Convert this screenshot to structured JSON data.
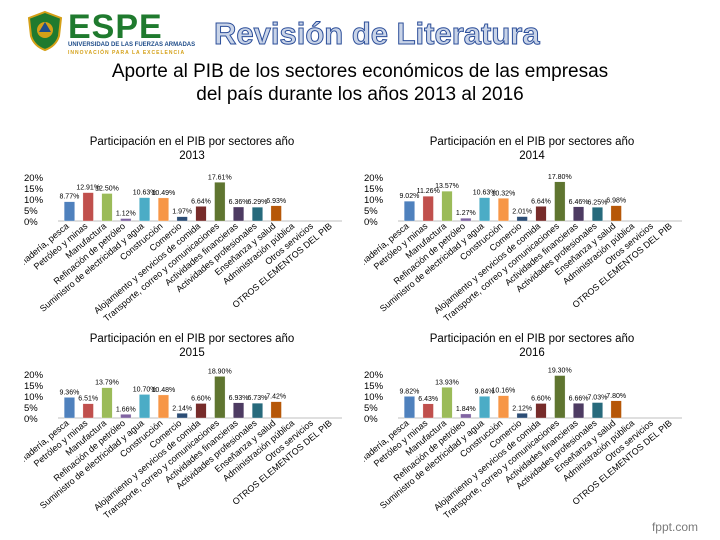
{
  "header": {
    "brand": "ESPE",
    "brand_sub1": "UNIVERSIDAD DE LAS FUERZAS ARMADAS",
    "brand_sub2": "INNOVACIÓN PARA LA EXCELENCIA",
    "section_title": "Revisión de Literatura",
    "logo_icon": "university-crest-icon"
  },
  "main_title_line1": "Aporte al PIB de los sectores económicos de las empresas",
  "main_title_line2": "del país durante los años 2013 al 2016",
  "footer": "fppt.com",
  "chart_data": [
    {
      "type": "bar",
      "title": "Participación en el PIB por sectores año 2013",
      "yticks": [
        "20%",
        "15%",
        "10%",
        "5%",
        "0%"
      ],
      "ylim": [
        0,
        20
      ],
      "categories": [
        "Agricultura, ganadería, pesca",
        "Petróleo y minas",
        "Manufactura",
        "Refinación de petróleo",
        "Suministro de electricidad y agua",
        "Construcción",
        "Comercio",
        "Alojamiento y servicios de comida",
        "Transporte, correo y comunicaciones",
        "Actividades financieras",
        "Actividades profesionales",
        "Enseñanza y salud",
        "Administración pública",
        "Otros servicios",
        "OTROS ELEMENTOS DEL PIB"
      ],
      "values": [
        8.77,
        12.91,
        12.5,
        1.12,
        10.63,
        10.49,
        1.97,
        6.64,
        17.61,
        6.36,
        6.29,
        6.93,
        0.0,
        0.0,
        0.0
      ],
      "value_labels": [
        "8.77%",
        "12.91%",
        "12.50%",
        "1.12%",
        "10.63%",
        "10.49%",
        "1.97%",
        "6.64%",
        "17.61%",
        "6.36%",
        "6.29%",
        "6.93%",
        "",
        "",
        ""
      ],
      "colors": [
        "#4f81bd",
        "#c0504d",
        "#9bbb59",
        "#8064a2",
        "#4bacc6",
        "#f79646",
        "#2c4d75",
        "#772c2a",
        "#5f7530",
        "#4d3b62",
        "#276a7c",
        "#b65708",
        "#729aca",
        "#cd7371",
        "#afc97a"
      ]
    },
    {
      "type": "bar",
      "title": "Participación en el PIB por sectores año 2014",
      "yticks": [
        "20%",
        "15%",
        "10%",
        "5%",
        "0%"
      ],
      "ylim": [
        0,
        20
      ],
      "categories": [
        "Agricultura, ganadería, pesca",
        "Petróleo y minas",
        "Manufactura",
        "Refinación de petróleo",
        "Suministro de electricidad y agua",
        "Construcción",
        "Comercio",
        "Alojamiento y servicios de comida",
        "Transporte, correo y comunicaciones",
        "Actividades financieras",
        "Actividades profesionales",
        "Enseñanza y salud",
        "Administración pública",
        "Otros servicios",
        "OTROS ELEMENTOS DEL PIB"
      ],
      "values": [
        9.02,
        11.26,
        13.57,
        1.27,
        10.63,
        10.32,
        2.01,
        6.64,
        17.8,
        6.46,
        6.25,
        6.98,
        0.0,
        0.0,
        0.0
      ],
      "value_labels": [
        "9.02%",
        "11.26%",
        "13.57%",
        "1.27%",
        "10.63%",
        "10.32%",
        "2.01%",
        "6.64%",
        "17.80%",
        "6.46%",
        "6.25%",
        "6.98%",
        "",
        "",
        ""
      ],
      "colors": [
        "#4f81bd",
        "#c0504d",
        "#9bbb59",
        "#8064a2",
        "#4bacc6",
        "#f79646",
        "#2c4d75",
        "#772c2a",
        "#5f7530",
        "#4d3b62",
        "#276a7c",
        "#b65708",
        "#729aca",
        "#cd7371",
        "#afc97a"
      ]
    },
    {
      "type": "bar",
      "title": "Participación en el PIB por sectores año 2015",
      "yticks": [
        "20%",
        "15%",
        "10%",
        "5%",
        "0%"
      ],
      "ylim": [
        0,
        20
      ],
      "categories": [
        "Agricultura, ganadería, pesca",
        "Petróleo y minas",
        "Manufactura",
        "Refinación de petróleo",
        "Suministro de electricidad y agua",
        "Construcción",
        "Comercio",
        "Alojamiento y servicios de comida",
        "Transporte, correo y comunicaciones",
        "Actividades financieras",
        "Actividades profesionales",
        "Enseñanza y salud",
        "Administración pública",
        "Otros servicios",
        "OTROS ELEMENTOS DEL PIB"
      ],
      "values": [
        9.36,
        6.51,
        13.79,
        1.66,
        10.7,
        10.48,
        2.14,
        6.6,
        18.9,
        6.93,
        6.73,
        7.42,
        0.0,
        0.0,
        0.0
      ],
      "value_labels": [
        "9.36%",
        "6.51%",
        "13.79%",
        "1.66%",
        "10.70%",
        "10.48%",
        "2.14%",
        "6.60%",
        "18.90%",
        "6.93%",
        "6.73%",
        "7.42%",
        "",
        "",
        ""
      ],
      "colors": [
        "#4f81bd",
        "#c0504d",
        "#9bbb59",
        "#8064a2",
        "#4bacc6",
        "#f79646",
        "#2c4d75",
        "#772c2a",
        "#5f7530",
        "#4d3b62",
        "#276a7c",
        "#b65708",
        "#729aca",
        "#cd7371",
        "#afc97a"
      ]
    },
    {
      "type": "bar",
      "title": "Participación en el PIB por sectores año 2016",
      "yticks": [
        "20%",
        "15%",
        "10%",
        "5%",
        "0%"
      ],
      "ylim": [
        0,
        20
      ],
      "categories": [
        "Agricultura, ganadería, pesca",
        "Petróleo y minas",
        "Manufactura",
        "Refinación de petróleo",
        "Suministro de electricidad y agua",
        "Construcción",
        "Comercio",
        "Alojamiento y servicios de comida",
        "Transporte, correo y comunicaciones",
        "Actividades financieras",
        "Actividades profesionales",
        "Enseñanza y salud",
        "Administración pública",
        "Otros servicios",
        "OTROS ELEMENTOS DEL PIB"
      ],
      "values": [
        9.82,
        6.43,
        13.93,
        1.84,
        9.84,
        10.16,
        2.12,
        6.6,
        19.3,
        6.66,
        7.03,
        7.8,
        0.0,
        0.0,
        0.0
      ],
      "value_labels": [
        "9.82%",
        "6.43%",
        "13.93%",
        "1.84%",
        "9.84%",
        "10.16%",
        "2.12%",
        "6.60%",
        "19.30%",
        "6.66%",
        "7.03%",
        "7.80%",
        "",
        "",
        ""
      ],
      "colors": [
        "#4f81bd",
        "#c0504d",
        "#9bbb59",
        "#8064a2",
        "#4bacc6",
        "#f79646",
        "#2c4d75",
        "#772c2a",
        "#5f7530",
        "#4d3b62",
        "#276a7c",
        "#b65708",
        "#729aca",
        "#cd7371",
        "#afc97a"
      ]
    }
  ]
}
